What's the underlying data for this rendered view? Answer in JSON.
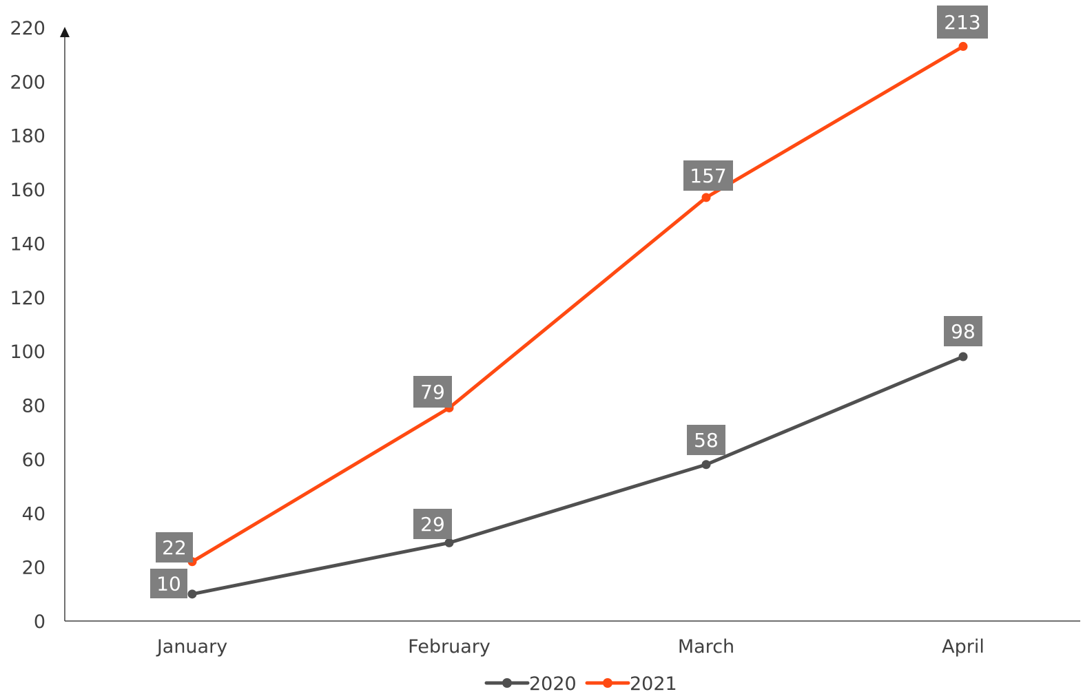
{
  "chart_data": {
    "type": "line",
    "categories": [
      "January",
      "February",
      "March",
      "April"
    ],
    "series": [
      {
        "name": "2020",
        "values": [
          10,
          29,
          58,
          98
        ],
        "color": "#505050"
      },
      {
        "name": "2021",
        "values": [
          22,
          79,
          157,
          213
        ],
        "color": "#ff4a12"
      }
    ],
    "y_ticks": [
      "0",
      "20",
      "40",
      "60",
      "80",
      "100",
      "120",
      "140",
      "160",
      "180",
      "200",
      "220"
    ],
    "ylim": [
      0,
      220
    ],
    "grid": false,
    "legend_position": "bottom",
    "data_label_color": "#7f7f7f",
    "axis_color": "#404040"
  }
}
